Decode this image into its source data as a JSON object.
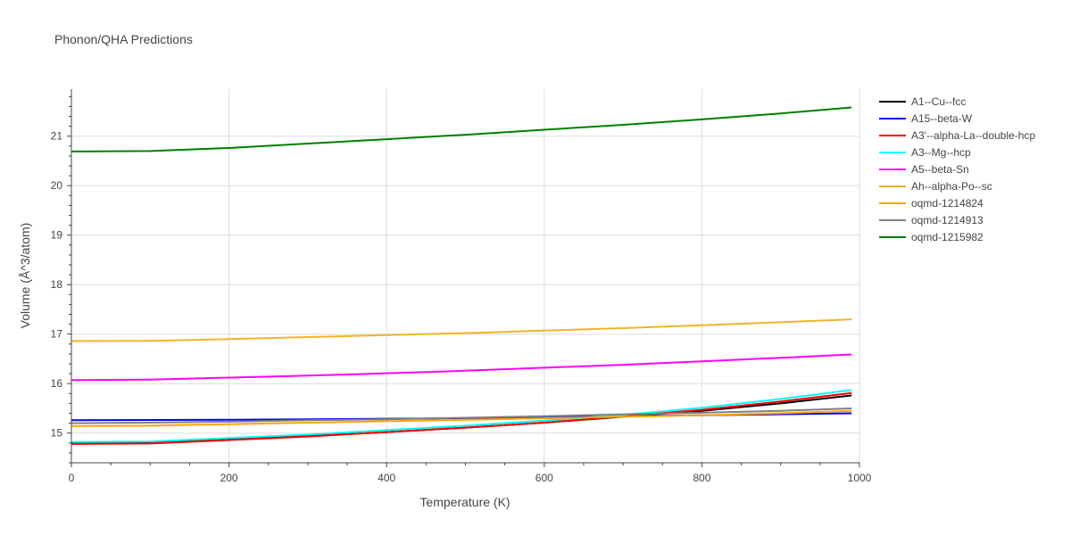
{
  "chart_data": {
    "type": "line",
    "title": "Phonon/QHA Predictions",
    "xlabel": "Temperature (K)",
    "ylabel": "Volume (Å^3/atom)",
    "xlim": [
      0,
      1000
    ],
    "ylim": [
      14.4,
      21.95
    ],
    "xticks": [
      0,
      200,
      400,
      600,
      800,
      1000
    ],
    "yticks": [
      15,
      16,
      17,
      18,
      19,
      20,
      21
    ],
    "grid": true,
    "legend_position": "right",
    "series": [
      {
        "name": "A1--Cu--fcc",
        "color": "#000000",
        "x": [
          0,
          100,
          200,
          300,
          400,
          500,
          600,
          700,
          800,
          900,
          990
        ],
        "y": [
          14.79,
          14.8,
          14.87,
          14.94,
          15.02,
          15.11,
          15.21,
          15.33,
          15.45,
          15.6,
          15.76
        ]
      },
      {
        "name": "A15--beta-W",
        "color": "#0000ff",
        "x": [
          0,
          100,
          200,
          300,
          400,
          500,
          600,
          700,
          800,
          900,
          990
        ],
        "y": [
          15.26,
          15.265,
          15.27,
          15.28,
          15.29,
          15.3,
          15.32,
          15.34,
          15.36,
          15.38,
          15.4
        ]
      },
      {
        "name": "A3'--alpha-La--double-hcp",
        "color": "#ff0000",
        "x": [
          0,
          100,
          200,
          300,
          400,
          500,
          600,
          700,
          800,
          900,
          990
        ],
        "y": [
          14.78,
          14.79,
          14.86,
          14.93,
          15.02,
          15.11,
          15.21,
          15.34,
          15.47,
          15.64,
          15.81
        ]
      },
      {
        "name": "A3--Mg--hcp",
        "color": "#00ffff",
        "x": [
          0,
          100,
          200,
          300,
          400,
          500,
          600,
          700,
          800,
          900,
          990
        ],
        "y": [
          14.82,
          14.83,
          14.9,
          14.97,
          15.06,
          15.15,
          15.25,
          15.37,
          15.51,
          15.69,
          15.87
        ]
      },
      {
        "name": "A5--beta-Sn",
        "color": "#ff00ff",
        "x": [
          0,
          100,
          200,
          300,
          400,
          500,
          600,
          700,
          800,
          900,
          990
        ],
        "y": [
          16.07,
          16.08,
          16.12,
          16.16,
          16.21,
          16.26,
          16.32,
          16.38,
          16.45,
          16.52,
          16.59
        ]
      },
      {
        "name": "Ah--alpha-Po--sc",
        "color": "#f0b429",
        "x": [
          0,
          100,
          200,
          300,
          400,
          500,
          600,
          700,
          800,
          900,
          990
        ],
        "y": [
          16.86,
          16.865,
          16.9,
          16.94,
          16.98,
          17.02,
          17.07,
          17.12,
          17.18,
          17.24,
          17.3
        ]
      },
      {
        "name": "oqmd-1214824",
        "color": "#ffa500",
        "x": [
          0,
          100,
          200,
          300,
          400,
          500,
          600,
          700,
          800,
          900,
          990
        ],
        "y": [
          15.14,
          15.15,
          15.18,
          15.21,
          15.24,
          15.27,
          15.3,
          15.33,
          15.36,
          15.4,
          15.45
        ]
      },
      {
        "name": "oqmd-1214913",
        "color": "#808080",
        "x": [
          0,
          100,
          200,
          300,
          400,
          500,
          600,
          700,
          800,
          900,
          990
        ],
        "y": [
          15.2,
          15.21,
          15.23,
          15.26,
          15.28,
          15.31,
          15.34,
          15.38,
          15.41,
          15.45,
          15.5
        ]
      },
      {
        "name": "oqmd-1215982",
        "color": "#008000",
        "x": [
          0,
          100,
          200,
          300,
          400,
          500,
          600,
          700,
          800,
          900,
          990
        ],
        "y": [
          20.69,
          20.7,
          20.76,
          20.85,
          20.94,
          21.03,
          21.13,
          21.23,
          21.34,
          21.46,
          21.58
        ]
      }
    ]
  }
}
